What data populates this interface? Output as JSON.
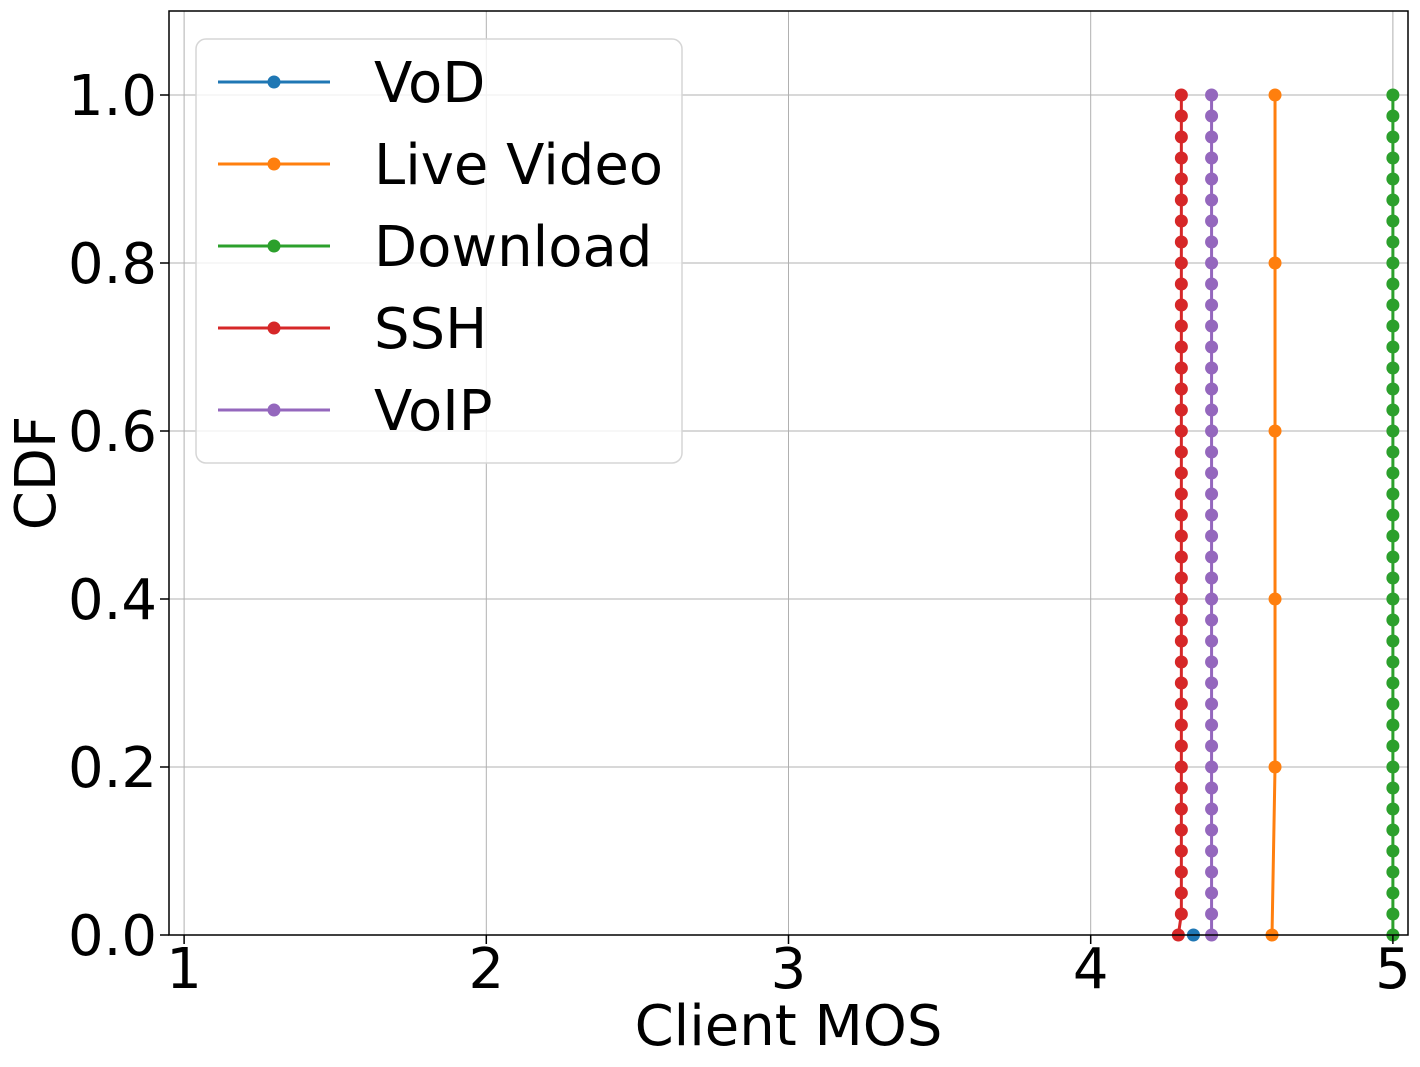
{
  "chart_data": {
    "type": "line",
    "title": "",
    "xlabel": "Client MOS",
    "ylabel": "CDF",
    "xlim": [
      0.95,
      5.05
    ],
    "ylim": [
      0.0,
      1.1
    ],
    "xticks": [
      1,
      2,
      3,
      4,
      5
    ],
    "xtick_labels": [
      "1",
      "2",
      "3",
      "4",
      "5"
    ],
    "yticks": [
      0.0,
      0.2,
      0.4,
      0.6,
      0.8,
      1.0
    ],
    "ytick_labels": [
      "0.0",
      "0.2",
      "0.4",
      "0.6",
      "0.8",
      "1.0"
    ],
    "grid": true,
    "legend_position": "top-left",
    "series": [
      {
        "name": "VoD",
        "color": "#1f77b4",
        "x": [
          4.34
        ],
        "y": [
          0.0
        ]
      },
      {
        "name": "Live Video",
        "color": "#ff7f0e",
        "x": [
          4.6,
          4.61,
          4.61,
          4.61,
          4.61,
          4.61
        ],
        "y": [
          0.0,
          0.2,
          0.4,
          0.6,
          0.8,
          1.0
        ]
      },
      {
        "name": "Download",
        "color": "#2ca02c",
        "x": [
          5.0,
          5.0,
          5.0,
          5.0,
          5.0,
          5.0,
          5.0,
          5.0,
          5.0,
          5.0,
          5.0,
          5.0,
          5.0,
          5.0,
          5.0,
          5.0,
          5.0,
          5.0,
          5.0,
          5.0,
          5.0,
          5.0,
          5.0,
          5.0,
          5.0,
          5.0,
          5.0,
          5.0,
          5.0,
          5.0,
          5.0,
          5.0,
          5.0,
          5.0,
          5.0,
          5.0,
          5.0,
          5.0,
          5.0,
          5.0,
          5.0
        ],
        "y": [
          0.0,
          0.025,
          0.05,
          0.075,
          0.1,
          0.125,
          0.15,
          0.175,
          0.2,
          0.225,
          0.25,
          0.275,
          0.3,
          0.325,
          0.35,
          0.375,
          0.4,
          0.425,
          0.45,
          0.475,
          0.5,
          0.525,
          0.55,
          0.575,
          0.6,
          0.625,
          0.65,
          0.675,
          0.7,
          0.725,
          0.75,
          0.775,
          0.8,
          0.825,
          0.85,
          0.875,
          0.9,
          0.925,
          0.95,
          0.975,
          1.0
        ]
      },
      {
        "name": "SSH",
        "color": "#d62728",
        "x": [
          4.29,
          4.3,
          4.3,
          4.3,
          4.3,
          4.3,
          4.3,
          4.3,
          4.3,
          4.3,
          4.3,
          4.3,
          4.3,
          4.3,
          4.3,
          4.3,
          4.3,
          4.3,
          4.3,
          4.3,
          4.3,
          4.3,
          4.3,
          4.3,
          4.3,
          4.3,
          4.3,
          4.3,
          4.3,
          4.3,
          4.3,
          4.3,
          4.3,
          4.3,
          4.3,
          4.3,
          4.3,
          4.3,
          4.3,
          4.3,
          4.3
        ],
        "y": [
          0.0,
          0.025,
          0.05,
          0.075,
          0.1,
          0.125,
          0.15,
          0.175,
          0.2,
          0.225,
          0.25,
          0.275,
          0.3,
          0.325,
          0.35,
          0.375,
          0.4,
          0.425,
          0.45,
          0.475,
          0.5,
          0.525,
          0.55,
          0.575,
          0.6,
          0.625,
          0.65,
          0.675,
          0.7,
          0.725,
          0.75,
          0.775,
          0.8,
          0.825,
          0.85,
          0.875,
          0.9,
          0.925,
          0.95,
          0.975,
          1.0
        ]
      },
      {
        "name": "VoIP",
        "color": "#9467bd",
        "x": [
          4.4,
          4.4,
          4.4,
          4.4,
          4.4,
          4.4,
          4.4,
          4.4,
          4.4,
          4.4,
          4.4,
          4.4,
          4.4,
          4.4,
          4.4,
          4.4,
          4.4,
          4.4,
          4.4,
          4.4,
          4.4,
          4.4,
          4.4,
          4.4,
          4.4,
          4.4,
          4.4,
          4.4,
          4.4,
          4.4,
          4.4,
          4.4,
          4.4,
          4.4,
          4.4,
          4.4,
          4.4,
          4.4,
          4.4,
          4.4,
          4.4
        ],
        "y": [
          0.0,
          0.025,
          0.05,
          0.075,
          0.1,
          0.125,
          0.15,
          0.175,
          0.2,
          0.225,
          0.25,
          0.275,
          0.3,
          0.325,
          0.35,
          0.375,
          0.4,
          0.425,
          0.45,
          0.475,
          0.5,
          0.525,
          0.55,
          0.575,
          0.6,
          0.625,
          0.65,
          0.675,
          0.7,
          0.725,
          0.75,
          0.775,
          0.8,
          0.825,
          0.85,
          0.875,
          0.9,
          0.925,
          0.95,
          0.975,
          1.0
        ]
      }
    ]
  }
}
